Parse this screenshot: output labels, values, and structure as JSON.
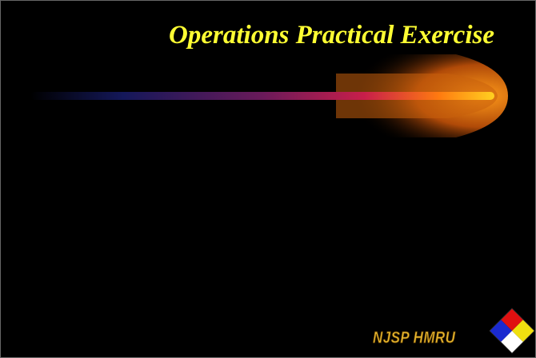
{
  "header": {
    "title": "Operations Practical Exercise"
  },
  "footer": {
    "text": "NJSP HMRU"
  }
}
